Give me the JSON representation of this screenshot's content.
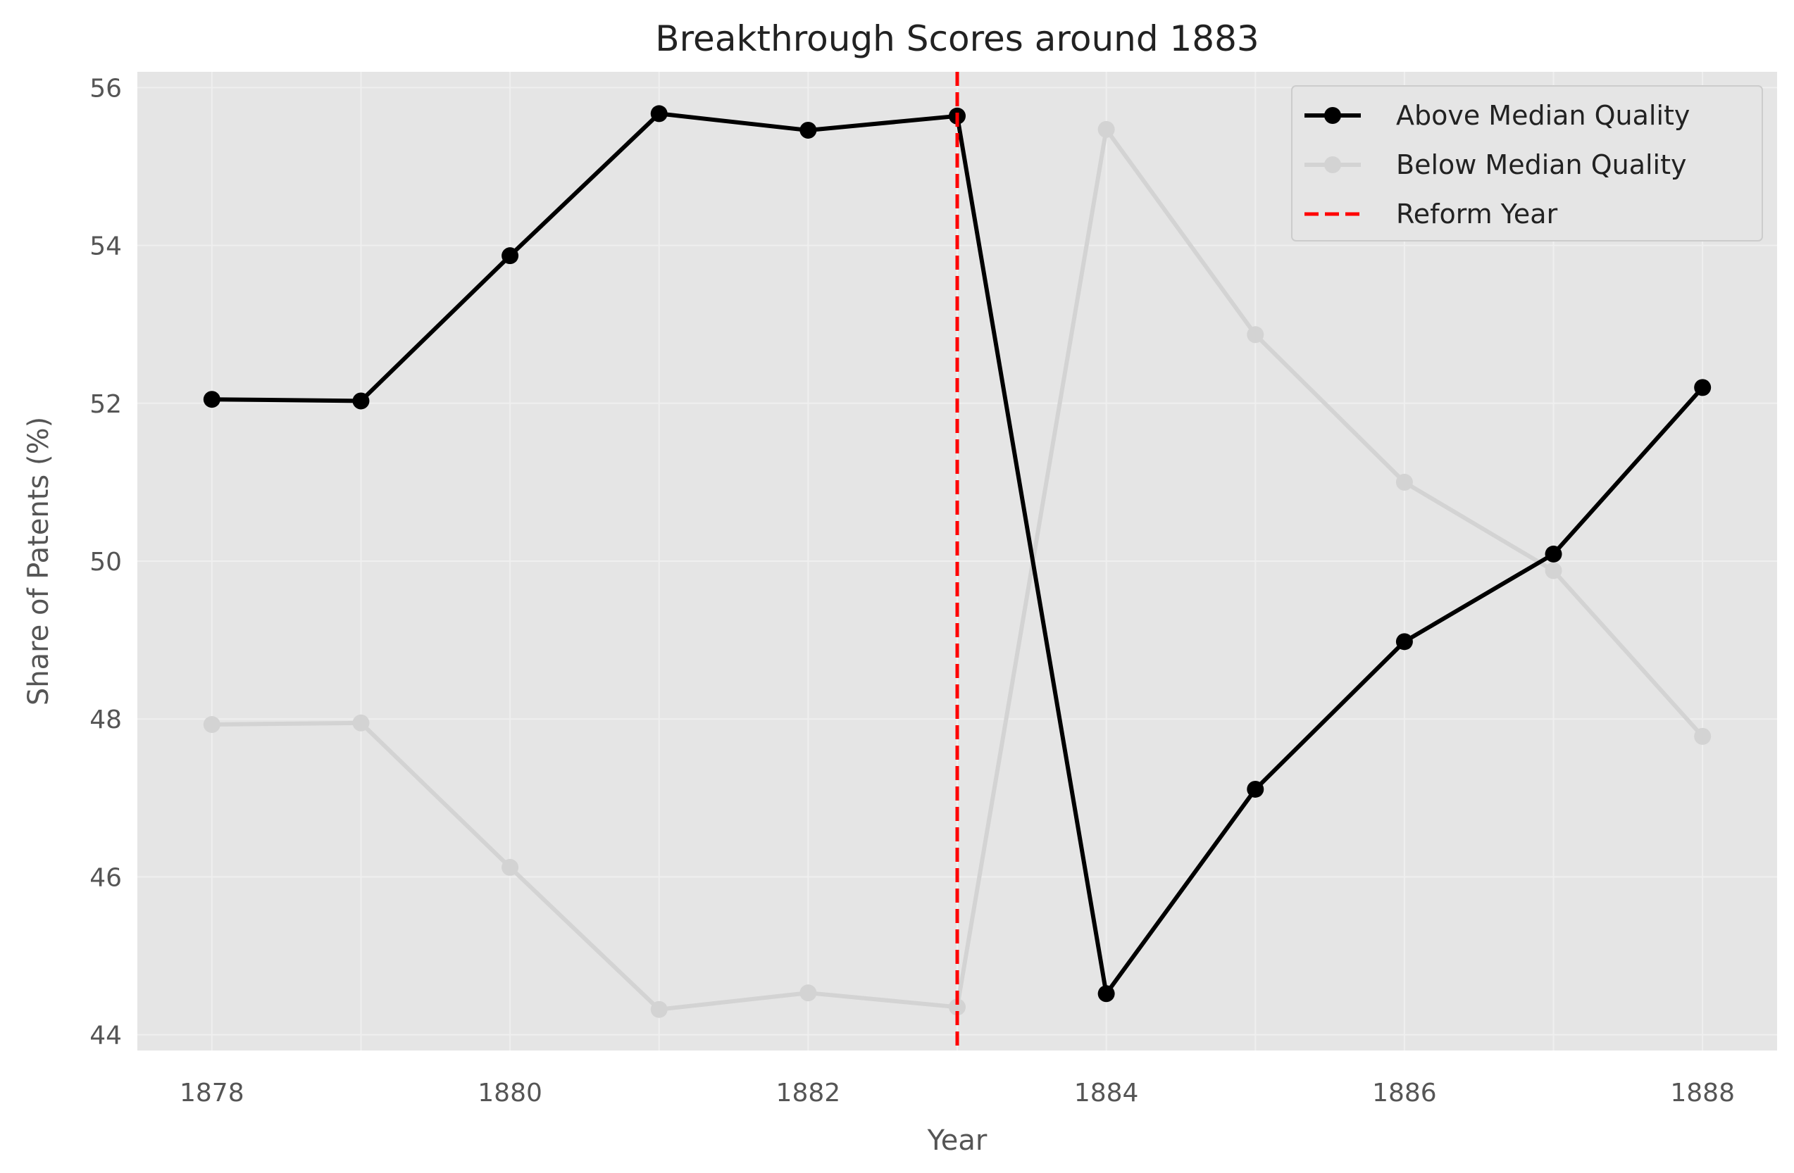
{
  "chart_data": {
    "type": "line",
    "title": "Breakthrough Scores around 1883",
    "xlabel": "Year",
    "ylabel": "Share of Patents (%)",
    "x": [
      1878,
      1879,
      1880,
      1881,
      1882,
      1883,
      1884,
      1885,
      1886,
      1887,
      1888
    ],
    "xlim": [
      1877.5,
      1888.5
    ],
    "ylim": [
      43.8,
      56.2
    ],
    "xticks": [
      1878,
      1880,
      1882,
      1884,
      1886,
      1888
    ],
    "yticks": [
      44,
      46,
      48,
      50,
      52,
      54,
      56
    ],
    "grid": true,
    "legend_position": "top-right",
    "series": [
      {
        "name": "Above Median Quality",
        "color": "#000000",
        "marker": "circle",
        "values": [
          52.05,
          52.03,
          53.87,
          55.67,
          55.46,
          55.64,
          44.52,
          47.11,
          48.98,
          50.09,
          52.2
        ]
      },
      {
        "name": "Below Median Quality",
        "color": "#d3d3d3",
        "marker": "circle",
        "values": [
          47.93,
          47.95,
          46.12,
          44.32,
          44.53,
          44.35,
          55.47,
          52.87,
          51.0,
          49.88,
          47.78
        ]
      }
    ],
    "reference_line": {
      "name": "Reform Year",
      "x": 1883,
      "color": "#ff0000",
      "style": "dashed"
    }
  }
}
